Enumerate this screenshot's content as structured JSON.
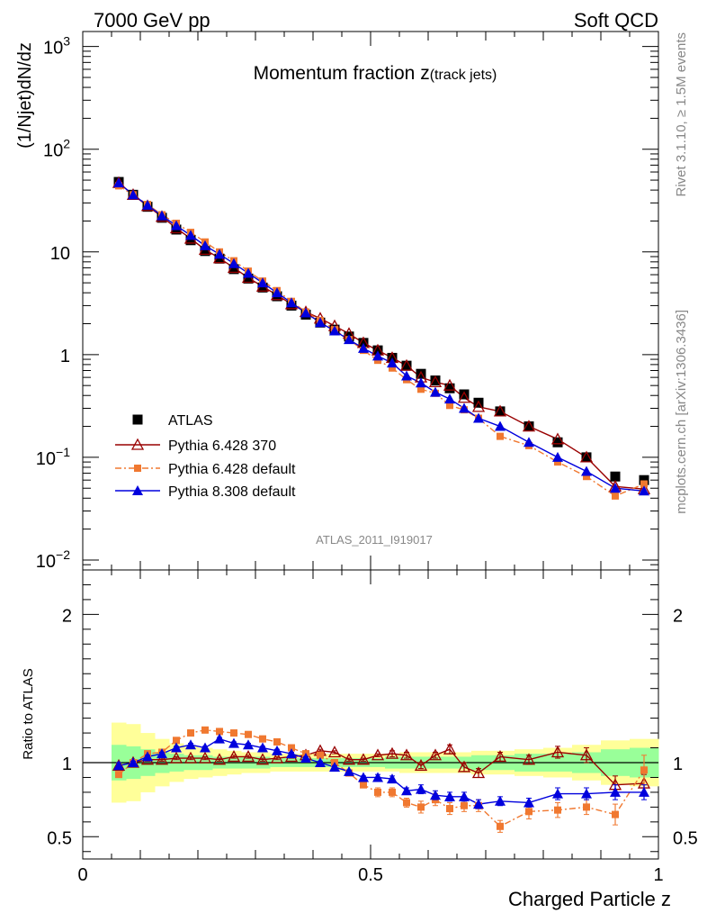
{
  "header": {
    "left": "7000 GeV pp",
    "right": "Soft QCD",
    "title_main": "Momentum fraction ",
    "title_z": "z",
    "title_sub": "(track jets)",
    "analysis_id": "ATLAS_2011_I919017"
  },
  "side_text": {
    "rivet": "Rivet 3.1.10, ≥ 1.5M events",
    "mcplots": "mcplots.cern.ch [arXiv:1306.3436]"
  },
  "chart_data": [
    {
      "type": "scatter",
      "panel": "main",
      "ylabel": "(1/Njet)dN/dz",
      "yscale": "log",
      "ylim": [
        0.008,
        1400
      ],
      "xlim": [
        0,
        1
      ],
      "y_ticks": [
        {
          "v": 0.01,
          "base": "10",
          "exp": "−2"
        },
        {
          "v": 0.1,
          "base": "10",
          "exp": "−1"
        },
        {
          "v": 1,
          "base": "1",
          "exp": ""
        },
        {
          "v": 10,
          "base": "10",
          "exp": ""
        },
        {
          "v": 100,
          "base": "10",
          "exp": "2"
        },
        {
          "v": 1000,
          "base": "10",
          "exp": "3"
        }
      ],
      "x": [
        0.0625,
        0.0875,
        0.1125,
        0.1375,
        0.1625,
        0.1875,
        0.2125,
        0.2375,
        0.2625,
        0.2875,
        0.3125,
        0.3375,
        0.3625,
        0.3875,
        0.4125,
        0.4375,
        0.4625,
        0.4875,
        0.5125,
        0.5375,
        0.5625,
        0.5875,
        0.6125,
        0.6375,
        0.6625,
        0.6875,
        0.725,
        0.775,
        0.825,
        0.875,
        0.925,
        0.975
      ],
      "series": [
        {
          "name": "ATLAS",
          "color": "#000000",
          "marker": "square",
          "values": [
            48,
            36,
            27.5,
            21.5,
            16.5,
            13,
            10.2,
            8.6,
            6.8,
            5.5,
            4.5,
            3.7,
            3.0,
            2.45,
            2.05,
            1.75,
            1.5,
            1.3,
            1.1,
            0.93,
            0.78,
            0.65,
            0.56,
            0.47,
            0.41,
            0.34,
            0.28,
            0.2,
            0.14,
            0.1,
            0.065,
            0.06
          ]
        },
        {
          "name": "Pythia 6.428 370",
          "color": "#990000",
          "marker": "triangle-open",
          "values": [
            47,
            36,
            28,
            22,
            17,
            13.5,
            10.5,
            8.7,
            7.0,
            5.6,
            4.6,
            3.8,
            3.1,
            2.6,
            2.25,
            1.9,
            1.6,
            1.3,
            1.1,
            0.93,
            0.78,
            0.6,
            0.54,
            0.5,
            0.38,
            0.31,
            0.28,
            0.2,
            0.15,
            0.1,
            0.052,
            0.049
          ]
        },
        {
          "name": "Pythia 6.428 default",
          "color": "#f07830",
          "marker": "square-small",
          "values": [
            44,
            36,
            29,
            23,
            19,
            15.5,
            12.5,
            10,
            8.2,
            6.5,
            5.2,
            4.2,
            3.3,
            2.6,
            2.15,
            1.75,
            1.4,
            1.1,
            0.88,
            0.74,
            0.57,
            0.46,
            0.42,
            0.32,
            0.29,
            0.24,
            0.16,
            0.13,
            0.09,
            0.065,
            0.042,
            0.055
          ]
        },
        {
          "name": "Pythia 8.308 default",
          "color": "#0000dd",
          "marker": "triangle",
          "values": [
            47,
            36,
            28.5,
            22.5,
            18,
            14.5,
            11.5,
            9.5,
            7.7,
            6.2,
            5.0,
            4.0,
            3.2,
            2.55,
            2.05,
            1.7,
            1.4,
            1.15,
            0.97,
            0.83,
            0.62,
            0.53,
            0.43,
            0.37,
            0.3,
            0.24,
            0.2,
            0.14,
            0.1,
            0.073,
            0.05,
            0.047
          ]
        }
      ]
    },
    {
      "type": "scatter",
      "panel": "ratio",
      "ylabel": "Ratio to ATLAS",
      "xlabel": "Charged Particle z",
      "ylim": [
        0.35,
        2.3
      ],
      "xlim": [
        0,
        1
      ],
      "x_ticks": [
        {
          "v": 0,
          "label": "0"
        },
        {
          "v": 0.5,
          "label": "0.5"
        },
        {
          "v": 1,
          "label": "1"
        }
      ],
      "y_ticks": [
        {
          "v": 0.5,
          "label": "0.5"
        },
        {
          "v": 1,
          "label": "1"
        },
        {
          "v": 2,
          "label": "2"
        }
      ],
      "x": [
        0.0625,
        0.0875,
        0.1125,
        0.1375,
        0.1625,
        0.1875,
        0.2125,
        0.2375,
        0.2625,
        0.2875,
        0.3125,
        0.3375,
        0.3625,
        0.3875,
        0.4125,
        0.4375,
        0.4625,
        0.4875,
        0.5125,
        0.5375,
        0.5625,
        0.5875,
        0.6125,
        0.6375,
        0.6625,
        0.6875,
        0.725,
        0.775,
        0.825,
        0.875,
        0.925,
        0.975
      ],
      "bin_edges": [
        0.05,
        0.075,
        0.1,
        0.125,
        0.15,
        0.175,
        0.2,
        0.225,
        0.25,
        0.275,
        0.3,
        0.325,
        0.35,
        0.375,
        0.4,
        0.425,
        0.45,
        0.475,
        0.5,
        0.525,
        0.55,
        0.575,
        0.6,
        0.625,
        0.65,
        0.675,
        0.7,
        0.75,
        0.8,
        0.85,
        0.9,
        0.95,
        1.0
      ],
      "band_yellow_halfwidth": [
        0.27,
        0.26,
        0.2,
        0.16,
        0.13,
        0.11,
        0.1,
        0.09,
        0.08,
        0.07,
        0.07,
        0.06,
        0.06,
        0.06,
        0.06,
        0.06,
        0.06,
        0.06,
        0.06,
        0.06,
        0.07,
        0.07,
        0.07,
        0.07,
        0.07,
        0.08,
        0.08,
        0.09,
        0.1,
        0.12,
        0.15,
        0.16
      ],
      "band_green_halfwidth": [
        0.12,
        0.11,
        0.09,
        0.07,
        0.06,
        0.05,
        0.05,
        0.04,
        0.04,
        0.04,
        0.04,
        0.03,
        0.03,
        0.03,
        0.03,
        0.03,
        0.03,
        0.03,
        0.03,
        0.04,
        0.04,
        0.04,
        0.04,
        0.04,
        0.04,
        0.05,
        0.05,
        0.06,
        0.06,
        0.07,
        0.09,
        0.1
      ],
      "series": [
        {
          "name": "Pythia 6.428 370",
          "color": "#990000",
          "marker": "triangle-open",
          "values": [
            0.98,
            1.0,
            1.02,
            1.02,
            1.03,
            1.03,
            1.03,
            1.02,
            1.04,
            1.04,
            1.02,
            1.03,
            1.04,
            1.05,
            1.08,
            1.07,
            1.02,
            1.02,
            1.05,
            1.06,
            1.05,
            0.98,
            1.05,
            1.09,
            0.97,
            0.93,
            1.04,
            1.02,
            1.07,
            1.05,
            0.85,
            0.86
          ],
          "err": [
            0.02,
            0.01,
            0.01,
            0.01,
            0.01,
            0.01,
            0.01,
            0.01,
            0.01,
            0.01,
            0.01,
            0.01,
            0.01,
            0.01,
            0.01,
            0.01,
            0.01,
            0.01,
            0.01,
            0.02,
            0.02,
            0.02,
            0.02,
            0.03,
            0.03,
            0.03,
            0.03,
            0.03,
            0.04,
            0.05,
            0.06,
            0.06
          ]
        },
        {
          "name": "Pythia 6.428 default",
          "color": "#f07830",
          "marker": "square-small",
          "values": [
            0.92,
            1.0,
            1.06,
            1.07,
            1.15,
            1.2,
            1.22,
            1.21,
            1.2,
            1.19,
            1.16,
            1.14,
            1.1,
            1.06,
            1.05,
            1.0,
            0.93,
            0.85,
            0.8,
            0.8,
            0.73,
            0.7,
            0.75,
            0.69,
            0.71,
            0.71,
            0.57,
            0.67,
            0.68,
            0.7,
            0.65,
            0.95
          ],
          "err": [
            0.02,
            0.02,
            0.02,
            0.02,
            0.02,
            0.02,
            0.02,
            0.02,
            0.02,
            0.02,
            0.02,
            0.02,
            0.02,
            0.02,
            0.02,
            0.02,
            0.02,
            0.02,
            0.03,
            0.03,
            0.03,
            0.04,
            0.04,
            0.04,
            0.04,
            0.04,
            0.04,
            0.05,
            0.05,
            0.05,
            0.07,
            0.1
          ]
        },
        {
          "name": "Pythia 8.308 default",
          "color": "#0000dd",
          "marker": "triangle",
          "values": [
            0.98,
            1.0,
            1.04,
            1.06,
            1.1,
            1.12,
            1.1,
            1.16,
            1.13,
            1.12,
            1.1,
            1.08,
            1.06,
            1.03,
            1.0,
            0.97,
            0.94,
            0.9,
            0.9,
            0.89,
            0.81,
            0.82,
            0.78,
            0.77,
            0.77,
            0.72,
            0.74,
            0.73,
            0.79,
            0.79,
            0.8,
            0.8
          ],
          "err": [
            0.02,
            0.01,
            0.01,
            0.01,
            0.01,
            0.01,
            0.01,
            0.01,
            0.01,
            0.01,
            0.01,
            0.01,
            0.01,
            0.01,
            0.01,
            0.01,
            0.01,
            0.01,
            0.02,
            0.02,
            0.02,
            0.03,
            0.03,
            0.03,
            0.03,
            0.03,
            0.03,
            0.03,
            0.04,
            0.04,
            0.05,
            0.05
          ]
        }
      ]
    }
  ],
  "colors": {
    "atlas": "#000000",
    "p6_370": "#990000",
    "p6_def": "#f07830",
    "p8_def": "#0000dd",
    "band_yellow": "#ffff99",
    "band_green": "#99ff99"
  }
}
